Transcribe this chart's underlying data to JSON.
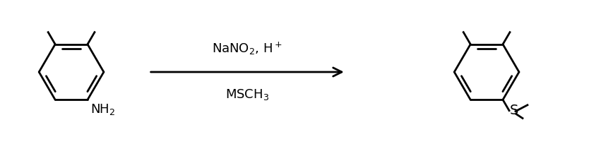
{
  "arrow_color": "#000000",
  "background_color": "#ffffff",
  "fig_width": 8.34,
  "fig_height": 2.04,
  "dpi": 100,
  "reagent_fontsize": 13,
  "label_fontsize": 13
}
